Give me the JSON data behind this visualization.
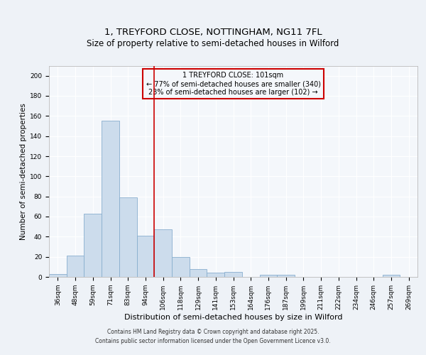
{
  "title_line1": "1, TREYFORD CLOSE, NOTTINGHAM, NG11 7FL",
  "title_line2": "Size of property relative to semi-detached houses in Wilford",
  "xlabel": "Distribution of semi-detached houses by size in Wilford",
  "ylabel": "Number of semi-detached properties",
  "categories": [
    "36sqm",
    "48sqm",
    "59sqm",
    "71sqm",
    "83sqm",
    "94sqm",
    "106sqm",
    "118sqm",
    "129sqm",
    "141sqm",
    "153sqm",
    "164sqm",
    "176sqm",
    "187sqm",
    "199sqm",
    "211sqm",
    "222sqm",
    "234sqm",
    "246sqm",
    "257sqm",
    "269sqm"
  ],
  "values": [
    3,
    21,
    63,
    155,
    79,
    41,
    47,
    20,
    8,
    4,
    5,
    0,
    2,
    2,
    0,
    0,
    0,
    0,
    0,
    2,
    0
  ],
  "bar_color": "#ccdcec",
  "bar_edgecolor": "#88aece",
  "property_line_x": 5.5,
  "property_sqm": 101,
  "annotation_text": "1 TREYFORD CLOSE: 101sqm\n← 77% of semi-detached houses are smaller (340)\n23% of semi-detached houses are larger (102) →",
  "annotation_box_edgecolor": "#cc0000",
  "vline_color": "#cc0000",
  "ylim": [
    0,
    210
  ],
  "yticks": [
    0,
    20,
    40,
    60,
    80,
    100,
    120,
    140,
    160,
    180,
    200
  ],
  "footer_line1": "Contains HM Land Registry data © Crown copyright and database right 2025.",
  "footer_line2": "Contains public sector information licensed under the Open Government Licence v3.0.",
  "background_color": "#eef2f7",
  "plot_background_color": "#f4f7fb",
  "grid_color": "#ffffff",
  "title_fontsize": 9.5,
  "subtitle_fontsize": 8.5,
  "xlabel_fontsize": 8,
  "ylabel_fontsize": 7.5,
  "tick_fontsize": 6.5,
  "annotation_fontsize": 7,
  "footer_fontsize": 5.5
}
